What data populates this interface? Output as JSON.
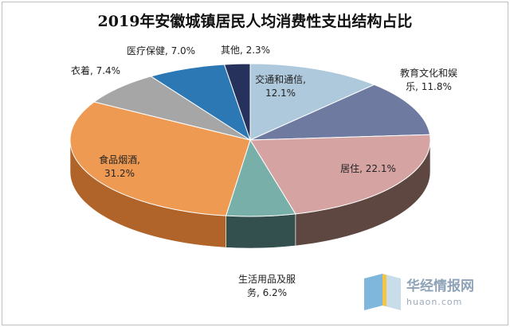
{
  "chart_data": {
    "type": "pie",
    "title": "2019年安徽城镇居民人均消费性支出结构占比",
    "slices": [
      {
        "label_lines": [
          "交通和通信,",
          "12.1%"
        ],
        "value": 12.1,
        "color": "#aec8dc",
        "side": "#7a93a6"
      },
      {
        "label_lines": [
          "教育文化和娱",
          "乐, 11.8%"
        ],
        "value": 11.8,
        "color": "#6e7aa0",
        "side": "#4a5270"
      },
      {
        "label_lines": [
          "居住, 22.1%"
        ],
        "value": 22.1,
        "color": "#d4a3a2",
        "side": "#5e4641"
      },
      {
        "label_lines": [
          "生活用品及服",
          "务, 6.2%"
        ],
        "value": 6.2,
        "color": "#78afa9",
        "side": "#34504e"
      },
      {
        "label_lines": [
          "食品烟酒,",
          "31.2%"
        ],
        "value": 31.2,
        "color": "#ef9a52",
        "side": "#b0642a"
      },
      {
        "label_lines": [
          "衣着, 7.4%"
        ],
        "value": 7.4,
        "color": "#a6a6a6",
        "side": "#707070"
      },
      {
        "label_lines": [
          "医疗保健, 7.0%"
        ],
        "value": 7.0,
        "color": "#2c78b4",
        "side": "#1b4d75"
      },
      {
        "label_lines": [
          "其他, 2.3%"
        ],
        "value": 2.3,
        "color": "#27325c",
        "side": "#151b33"
      }
    ]
  },
  "watermark": {
    "name": "华经情报网",
    "url": "huaon.com",
    "icon": "book-logo-icon"
  }
}
